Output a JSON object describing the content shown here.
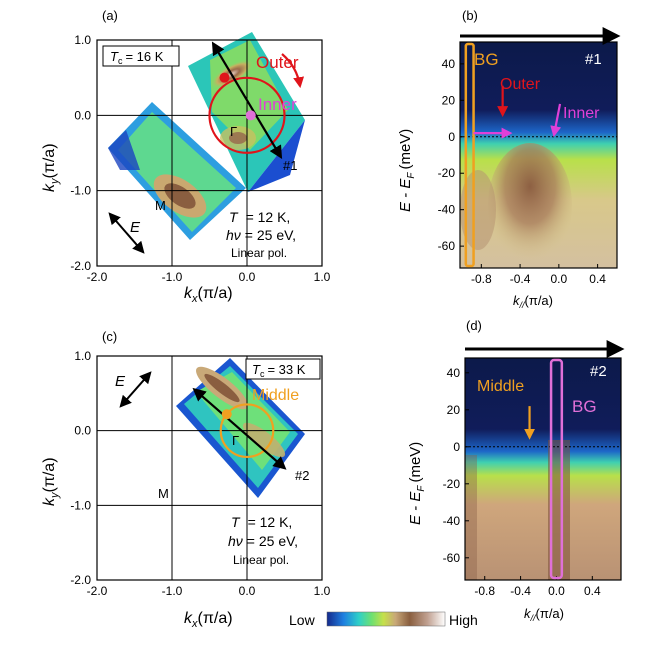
{
  "colors": {
    "outer": "#e0141b",
    "inner": "#e040d8",
    "middle": "#f0a020",
    "bg_a": "#f0a020",
    "bg_b": "#e070d8",
    "axis": "#000000",
    "cmap": [
      "#142a8c",
      "#1f7fe0",
      "#2fd0c8",
      "#6fe070",
      "#c6e04a",
      "#d8c070",
      "#8a5f3f",
      "#c0a090",
      "#ffffff"
    ]
  },
  "chart_data": [
    {
      "id": "a",
      "type": "heatmap",
      "panel_label": "(a)",
      "xlabel": "k",
      "xlabel_sub": "x",
      "xlabel_unit": "(π/a)",
      "ylabel": "k",
      "ylabel_sub": "y",
      "ylabel_unit": "(π/a)",
      "xlim": [
        -2.0,
        1.0
      ],
      "ylim": [
        -2.0,
        1.0
      ],
      "xticks": [
        "-2.0",
        "-1.0",
        "0.0",
        "1.0"
      ],
      "yticks": [
        "-2.0",
        "-1.0",
        "0.0",
        "1.0"
      ],
      "tc_box": {
        "sym": "T",
        "sub": "c",
        "val": "= 16 K"
      },
      "cond": {
        "T_sym": "T",
        "T_val": "= 12 K,",
        "hv_sym": "hν",
        "hv_val": "= 25 eV,",
        "pol": "Linear pol."
      },
      "labels": {
        "outer": "Outer",
        "inner": "Inner",
        "gamma": "Γ",
        "M": "M",
        "cut": "#1",
        "E": "E"
      },
      "cut_line": {
        "x0": -0.45,
        "y0": 0.95,
        "x1": 0.45,
        "y1": -0.55
      },
      "outer_circle": {
        "cx": 0.0,
        "cy": 0.0,
        "r": 0.5
      },
      "outer_point": {
        "x": -0.3,
        "y": 0.5
      },
      "inner_point": {
        "x": 0.05,
        "y": 0.0
      }
    },
    {
      "id": "b",
      "type": "heatmap",
      "panel_label": "(b)",
      "xlabel": "k",
      "xlabel_sub": "//",
      "xlabel_unit": "(π/a)",
      "ylabel": "E - E",
      "ylabel_sub": "F",
      "ylabel_unit": "(meV)",
      "xlim": [
        -1.02,
        0.6
      ],
      "ylim": [
        -72,
        52
      ],
      "xticks": [
        "-0.8",
        "-0.4",
        "0.0",
        "0.4"
      ],
      "xtick_values": [
        -0.8,
        -0.4,
        0.0,
        0.4
      ],
      "yticks": [
        "40",
        "20",
        "0",
        "-20",
        "-40",
        "-60"
      ],
      "ytick_values": [
        40,
        20,
        0,
        -20,
        -40,
        -60
      ],
      "cut": "#1",
      "labels": {
        "bg": "BG",
        "outer": "Outer",
        "inner": "Inner"
      },
      "bg_band": [
        -0.96,
        -0.88
      ],
      "outer_k": -0.58,
      "inner_k": -0.05
    },
    {
      "id": "c",
      "type": "heatmap",
      "panel_label": "(c)",
      "xlabel": "k",
      "xlabel_sub": "x",
      "xlabel_unit": "(π/a)",
      "ylabel": "k",
      "ylabel_sub": "y",
      "ylabel_unit": "(π/a)",
      "xlim": [
        -2.0,
        1.0
      ],
      "ylim": [
        -2.0,
        1.0
      ],
      "xticks": [
        "-2.0",
        "-1.0",
        "0.0",
        "1.0"
      ],
      "yticks": [
        "-2.0",
        "-1.0",
        "0.0",
        "1.0"
      ],
      "tc_box": {
        "sym": "T",
        "sub": "c",
        "val": "= 33 K"
      },
      "cond": {
        "T_sym": "T",
        "T_val": "= 12 K,",
        "hv_sym": "hν",
        "hv_val": "= 25 eV,",
        "pol": "Linear pol."
      },
      "labels": {
        "middle": "Middle",
        "gamma": "Γ",
        "M": "M",
        "cut": "#2",
        "E": "E"
      },
      "cut_line": {
        "x0": -0.7,
        "y0": 0.55,
        "x1": 0.5,
        "y1": -0.5
      },
      "middle_circle": {
        "cx": 0.0,
        "cy": 0.0,
        "r": 0.35
      },
      "middle_point": {
        "x": -0.27,
        "y": 0.22
      }
    },
    {
      "id": "d",
      "type": "heatmap",
      "panel_label": "(d)",
      "xlabel": "k",
      "xlabel_sub": "//",
      "xlabel_unit": "(π/a)",
      "ylabel": "E - E",
      "ylabel_sub": "F",
      "ylabel_unit": "(meV)",
      "xlim": [
        -1.02,
        0.72
      ],
      "ylim": [
        -72,
        48
      ],
      "xticks": [
        "-0.8",
        "-0.4",
        "0.0",
        "0.4"
      ],
      "xtick_values": [
        -0.8,
        -0.4,
        0.0,
        0.4
      ],
      "yticks": [
        "40",
        "20",
        "0",
        "-20",
        "-40",
        "-60"
      ],
      "ytick_values": [
        40,
        20,
        0,
        -20,
        -40,
        -60
      ],
      "cut": "#2",
      "labels": {
        "bg": "BG",
        "middle": "Middle"
      },
      "bg_band": [
        -0.06,
        0.06
      ],
      "middle_k": -0.3
    }
  ],
  "colorbar": {
    "low": "Low",
    "high": "High"
  }
}
